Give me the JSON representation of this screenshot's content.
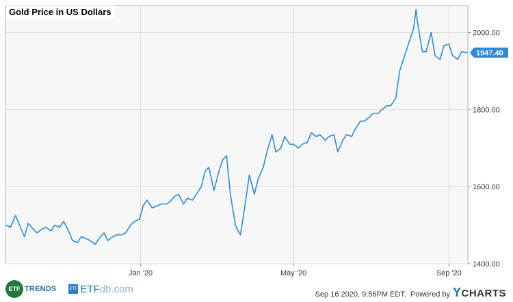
{
  "chart_data": {
    "type": "line",
    "title": "Gold Price in US Dollars",
    "y_ticks": [
      "1400.00",
      "1600.00",
      "1800.00",
      "2000.00"
    ],
    "y_tick_values": [
      1400,
      1600,
      1800,
      2000
    ],
    "x_ticks": [
      "Jan '20",
      "May '20",
      "Sep '20"
    ],
    "x_tick_values": [
      "2020-01-01",
      "2020-05-01",
      "2020-09-01"
    ],
    "ylim": [
      1400,
      2070
    ],
    "xlim": [
      "2019-09-16",
      "2020-09-16"
    ],
    "grid": true,
    "current_value": "1947.40",
    "current_value_num": 1947.4,
    "line_color": "#2f8ad6",
    "series": [
      {
        "x": [
          "2019-09-16",
          "2019-09-20",
          "2019-09-24",
          "2019-10-01",
          "2019-10-04",
          "2019-10-08",
          "2019-10-11",
          "2019-10-15",
          "2019-10-18",
          "2019-10-22",
          "2019-10-25",
          "2019-10-29",
          "2019-11-01",
          "2019-11-05",
          "2019-11-08",
          "2019-11-12",
          "2019-11-15",
          "2019-11-19",
          "2019-11-22",
          "2019-11-26",
          "2019-11-29",
          "2019-12-03",
          "2019-12-06",
          "2019-12-10",
          "2019-12-13",
          "2019-12-17",
          "2019-12-20",
          "2019-12-24",
          "2019-12-27",
          "2019-12-31",
          "2020-01-03",
          "2020-01-06",
          "2020-01-08",
          "2020-01-10",
          "2020-01-14",
          "2020-01-17",
          "2020-01-21",
          "2020-01-24",
          "2020-01-28",
          "2020-01-31",
          "2020-02-04",
          "2020-02-07",
          "2020-02-11",
          "2020-02-14",
          "2020-02-18",
          "2020-02-21",
          "2020-02-24",
          "2020-02-28",
          "2020-03-03",
          "2020-03-06",
          "2020-03-09",
          "2020-03-12",
          "2020-03-16",
          "2020-03-19",
          "2020-03-20",
          "2020-03-24",
          "2020-03-27",
          "2020-03-31",
          "2020-04-03",
          "2020-04-07",
          "2020-04-10",
          "2020-04-14",
          "2020-04-17",
          "2020-04-21",
          "2020-04-24",
          "2020-04-28",
          "2020-05-01",
          "2020-05-05",
          "2020-05-08",
          "2020-05-12",
          "2020-05-15",
          "2020-05-19",
          "2020-05-22",
          "2020-05-26",
          "2020-05-29",
          "2020-06-02",
          "2020-06-05",
          "2020-06-09",
          "2020-06-12",
          "2020-06-16",
          "2020-06-19",
          "2020-06-23",
          "2020-06-26",
          "2020-06-30",
          "2020-07-03",
          "2020-07-07",
          "2020-07-10",
          "2020-07-14",
          "2020-07-17",
          "2020-07-21",
          "2020-07-24",
          "2020-07-28",
          "2020-07-31",
          "2020-08-04",
          "2020-08-06",
          "2020-08-07",
          "2020-08-11",
          "2020-08-14",
          "2020-08-18",
          "2020-08-21",
          "2020-08-25",
          "2020-08-28",
          "2020-09-01",
          "2020-09-04",
          "2020-09-08",
          "2020-09-11",
          "2020-09-16"
        ],
        "values": [
          1500,
          1495,
          1525,
          1470,
          1505,
          1490,
          1480,
          1490,
          1495,
          1485,
          1500,
          1495,
          1510,
          1485,
          1460,
          1455,
          1470,
          1465,
          1460,
          1450,
          1465,
          1480,
          1460,
          1470,
          1475,
          1475,
          1480,
          1500,
          1510,
          1515,
          1550,
          1565,
          1555,
          1545,
          1550,
          1555,
          1555,
          1560,
          1575,
          1580,
          1555,
          1570,
          1565,
          1580,
          1600,
          1640,
          1650,
          1590,
          1640,
          1670,
          1680,
          1580,
          1500,
          1480,
          1475,
          1560,
          1630,
          1580,
          1620,
          1650,
          1690,
          1735,
          1690,
          1700,
          1730,
          1710,
          1710,
          1700,
          1710,
          1715,
          1740,
          1730,
          1735,
          1720,
          1730,
          1735,
          1690,
          1720,
          1735,
          1730,
          1750,
          1770,
          1770,
          1780,
          1790,
          1790,
          1800,
          1810,
          1810,
          1830,
          1900,
          1940,
          1970,
          2010,
          2060,
          2030,
          1950,
          1950,
          2000,
          1940,
          1930,
          1965,
          1970,
          1940,
          1930,
          1950,
          1947.4
        ]
      }
    ]
  },
  "footer": {
    "etf_trends_circle": "ETF",
    "etf_trends_word": "TRENDS",
    "etfdb_square": "ETF",
    "etfdb_prefix": "ETF",
    "etfdb_suffix": "db.com",
    "timestamp": "Sep 16 2020, 9:56PM EDT.",
    "powered_by": "Powered by",
    "ycharts_y": "Y",
    "ycharts_rest": "CHARTS"
  }
}
